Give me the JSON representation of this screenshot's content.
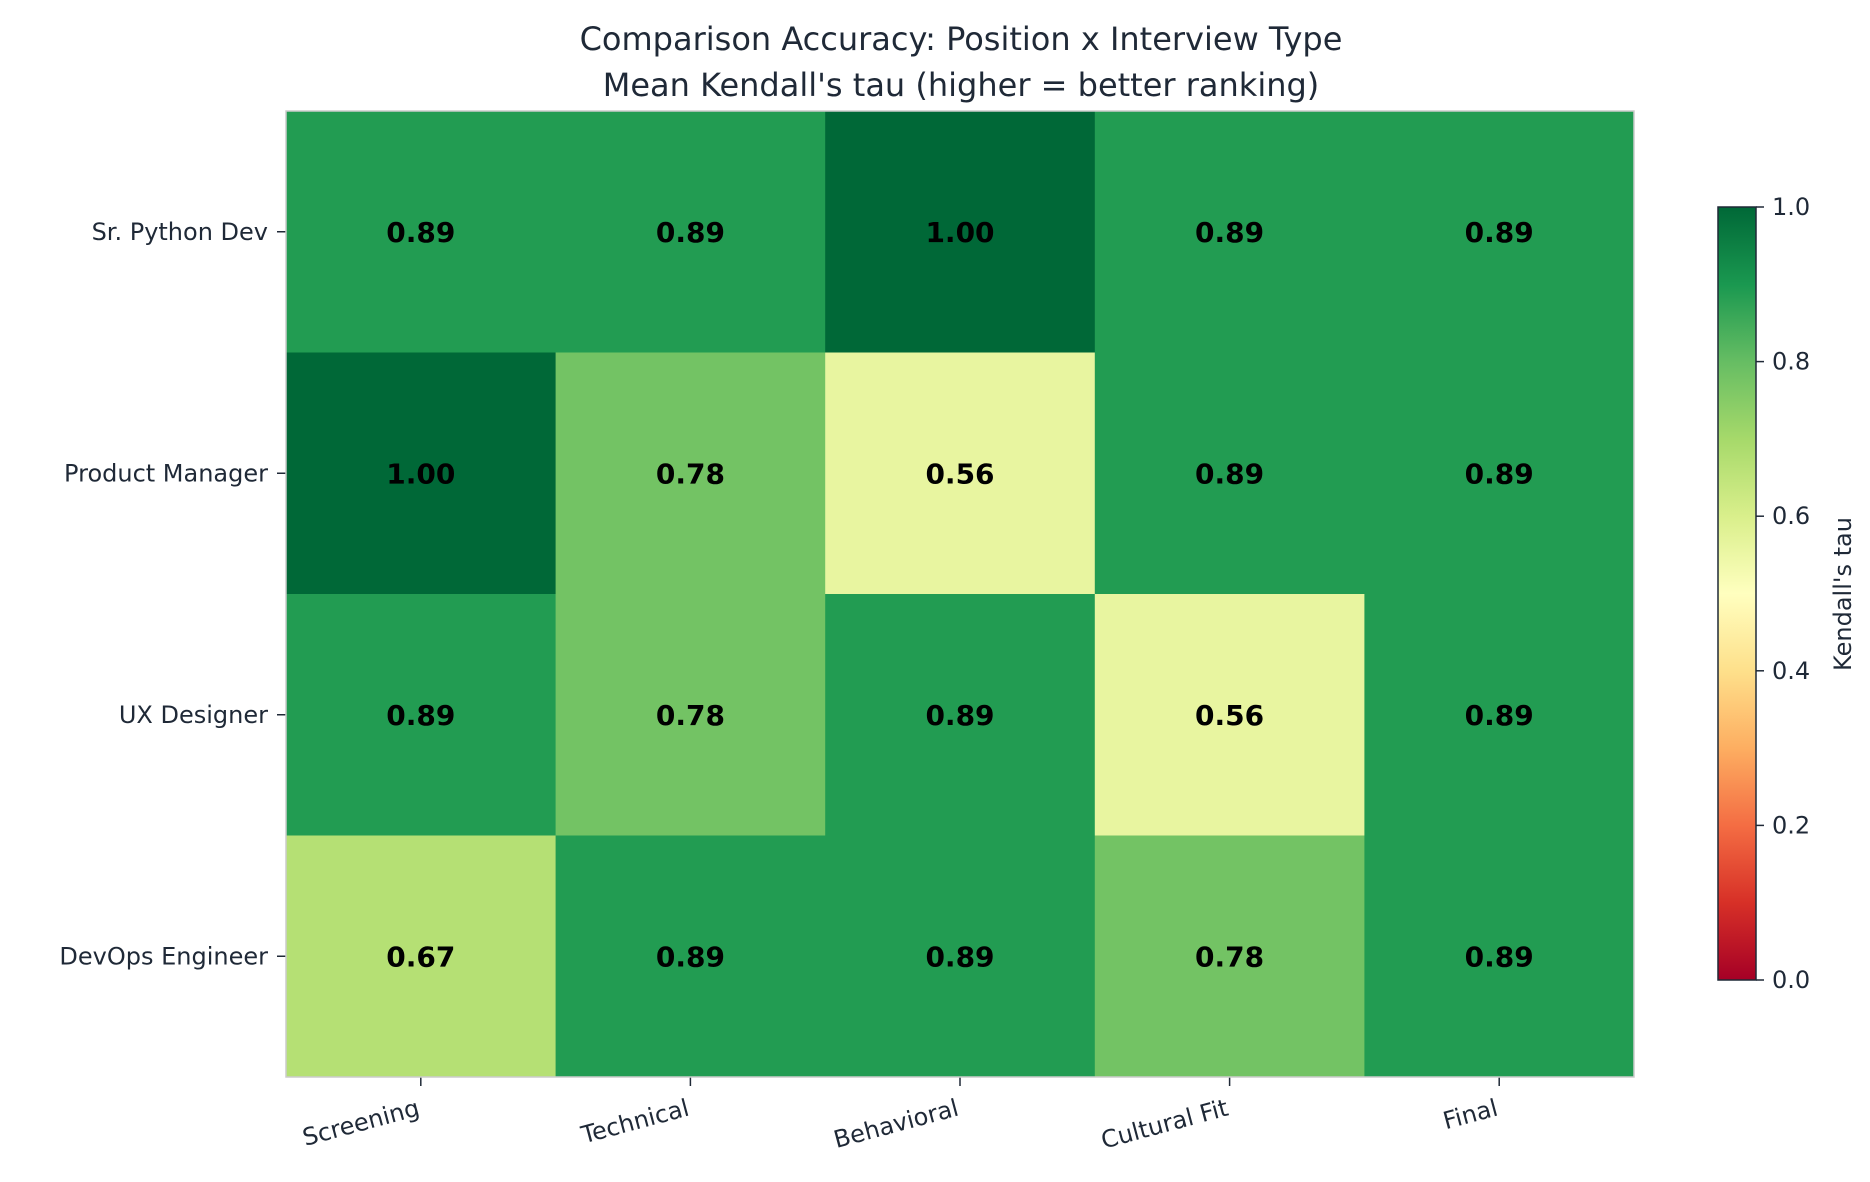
{
  "chart_data": {
    "type": "heatmap",
    "title": "Comparison Accuracy: Position x Interview Type",
    "subtitle": "Mean Kendall's tau (higher = better ranking)",
    "rows": [
      "Sr. Python Dev",
      "Product Manager",
      "UX Designer",
      "DevOps Engineer"
    ],
    "columns": [
      "Screening",
      "Technical",
      "Behavioral",
      "Cultural Fit",
      "Final"
    ],
    "values": [
      [
        0.89,
        0.89,
        1.0,
        0.89,
        0.89
      ],
      [
        1.0,
        0.78,
        0.56,
        0.89,
        0.89
      ],
      [
        0.89,
        0.78,
        0.89,
        0.56,
        0.89
      ],
      [
        0.67,
        0.89,
        0.89,
        0.78,
        0.89
      ]
    ],
    "colormap": "RdYlGn",
    "vmin": 0.0,
    "vmax": 1.0,
    "colorbar": {
      "label": "Kendall's tau",
      "ticks": [
        "0.0",
        "0.2",
        "0.4",
        "0.6",
        "0.8",
        "1.0"
      ]
    },
    "annotation_color": "#000000",
    "text_color": "#1f2937",
    "axis_color": "#cccccc"
  }
}
